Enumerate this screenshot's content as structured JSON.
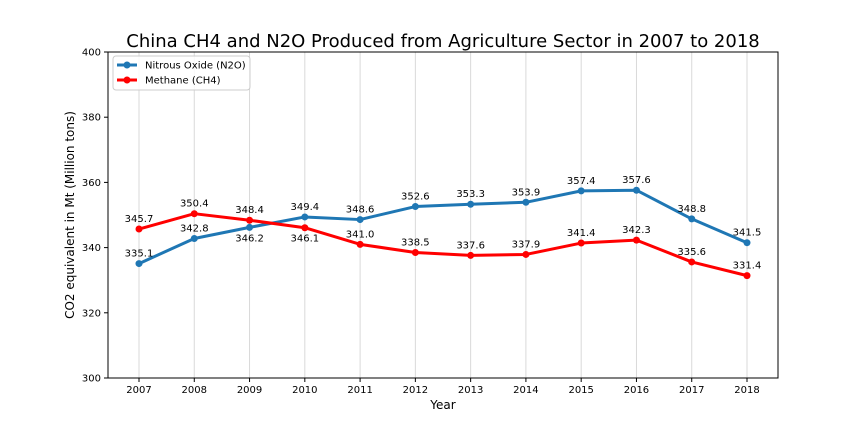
{
  "chart_data": {
    "type": "line",
    "title": "China CH4 and N2O Produced from Agriculture Sector in 2007 to 2018",
    "xlabel": "Year",
    "ylabel": "CO2 equivalent in Mt (Million tons)",
    "categories": [
      "2007",
      "2008",
      "2009",
      "2010",
      "2011",
      "2012",
      "2013",
      "2014",
      "2015",
      "2016",
      "2017",
      "2018"
    ],
    "ylim": [
      300,
      400
    ],
    "yticks": [
      300,
      320,
      340,
      360,
      380,
      400
    ],
    "grid": "vertical",
    "legend_position": "top-left",
    "series": [
      {
        "name": "Nitrous Oxide (N2O)",
        "color": "#1f77b4",
        "values": [
          335.1,
          342.8,
          346.2,
          349.4,
          348.6,
          352.6,
          353.3,
          353.9,
          357.4,
          357.6,
          348.8,
          341.5
        ],
        "labels": [
          "335.1",
          "342.8",
          "346.2",
          "349.4",
          "348.6",
          "352.6",
          "353.3",
          "353.9",
          "357.4",
          "357.6",
          "348.8",
          "341.5"
        ]
      },
      {
        "name": "Methane (CH4)",
        "color": "#ff0000",
        "values": [
          345.7,
          350.4,
          348.4,
          346.1,
          341.0,
          338.5,
          337.6,
          337.9,
          341.4,
          342.3,
          335.6,
          331.4
        ],
        "labels": [
          "345.7",
          "350.4",
          "348.4",
          "346.1",
          "341.0",
          "338.5",
          "337.6",
          "337.9",
          "341.4",
          "342.3",
          "335.6",
          "331.4"
        ]
      }
    ]
  }
}
